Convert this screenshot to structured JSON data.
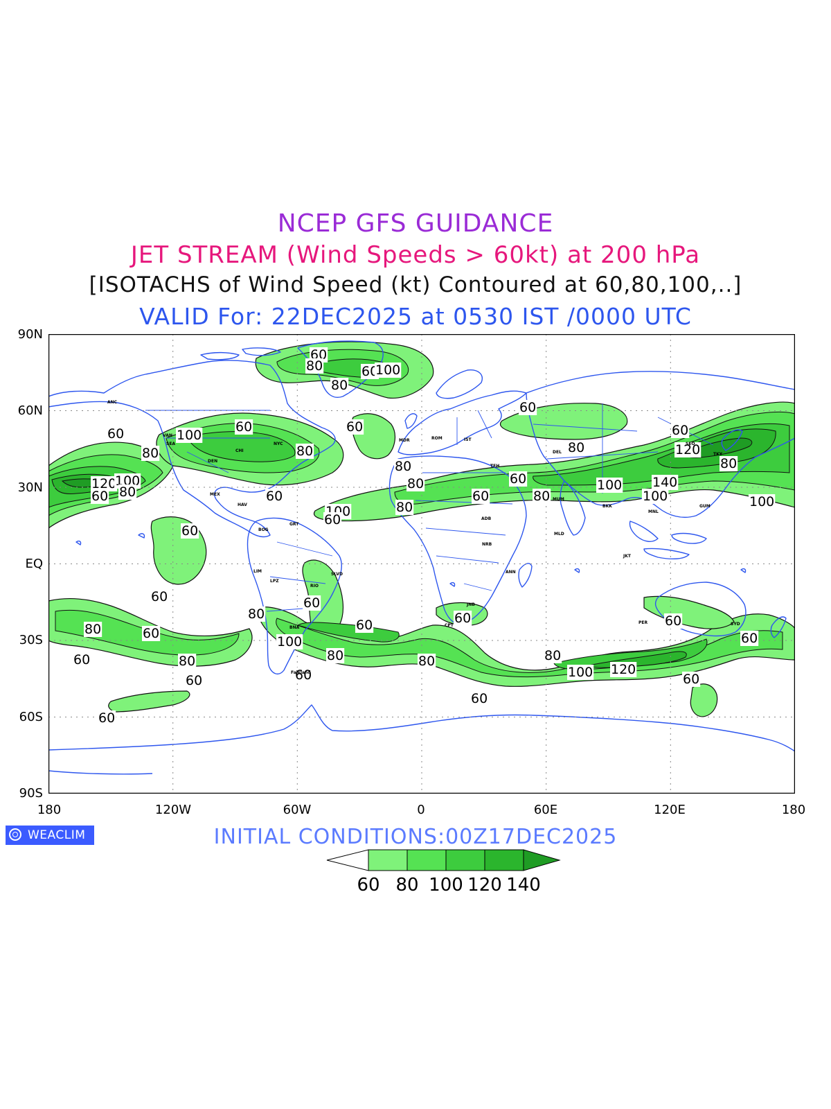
{
  "titles": {
    "line1": "NCEP GFS GUIDANCE",
    "line2": "JET STREAM (Wind Speeds > 60kt) at 200 hPa",
    "line3": "[ISOTACHS of Wind Speed (kt) Contoured at 60,80,100,..]",
    "line4": "VALID For: 22DEC2025 at 0530 IST /0000 UTC"
  },
  "map": {
    "lat_labels": [
      "90N",
      "60N",
      "30N",
      "EQ",
      "30S",
      "60S",
      "90S"
    ],
    "lon_labels": [
      "180",
      "120W",
      "60W",
      "0",
      "60E",
      "120E",
      "180"
    ],
    "grid": "dotted",
    "colors": {
      "coast": "#2d56ee",
      "fill_60": "#7ff27a",
      "fill_80": "#55e253",
      "fill_100": "#3dcc3e",
      "fill_120": "#2bb52d",
      "fill_140": "#1f9c24"
    }
  },
  "logo": {
    "text": "WEACLIM",
    "icon": "weaclim-logo-icon"
  },
  "initial_conditions": "INITIAL CONDITIONS:00Z17DEC2025",
  "colorbar": {
    "levels": [
      "60",
      "80",
      "100",
      "120",
      "140"
    ],
    "colors": [
      "#ffffff",
      "#7ff27a",
      "#55e253",
      "#3dcc3e",
      "#2bb52d",
      "#1f9c24"
    ]
  },
  "contour_labels": [
    "60",
    "80",
    "100",
    "120",
    "140"
  ],
  "station_labels": [
    "ANC",
    "VAN",
    "SEA",
    "DEN",
    "CHI",
    "NYC",
    "MEX",
    "HAV",
    "BOG",
    "LIM",
    "LPZ",
    "GRT",
    "SLVD",
    "RIO",
    "BNA",
    "Falkland",
    "MDR",
    "ROM",
    "IST",
    "TEH",
    "DEL",
    "ADB",
    "NRB",
    "ANN",
    "JNB",
    "CPT",
    "MUM",
    "BKK",
    "MNL",
    "TKY",
    "SEO",
    "PER",
    "SYD",
    "GUM",
    "JKT",
    "MLD"
  ]
}
